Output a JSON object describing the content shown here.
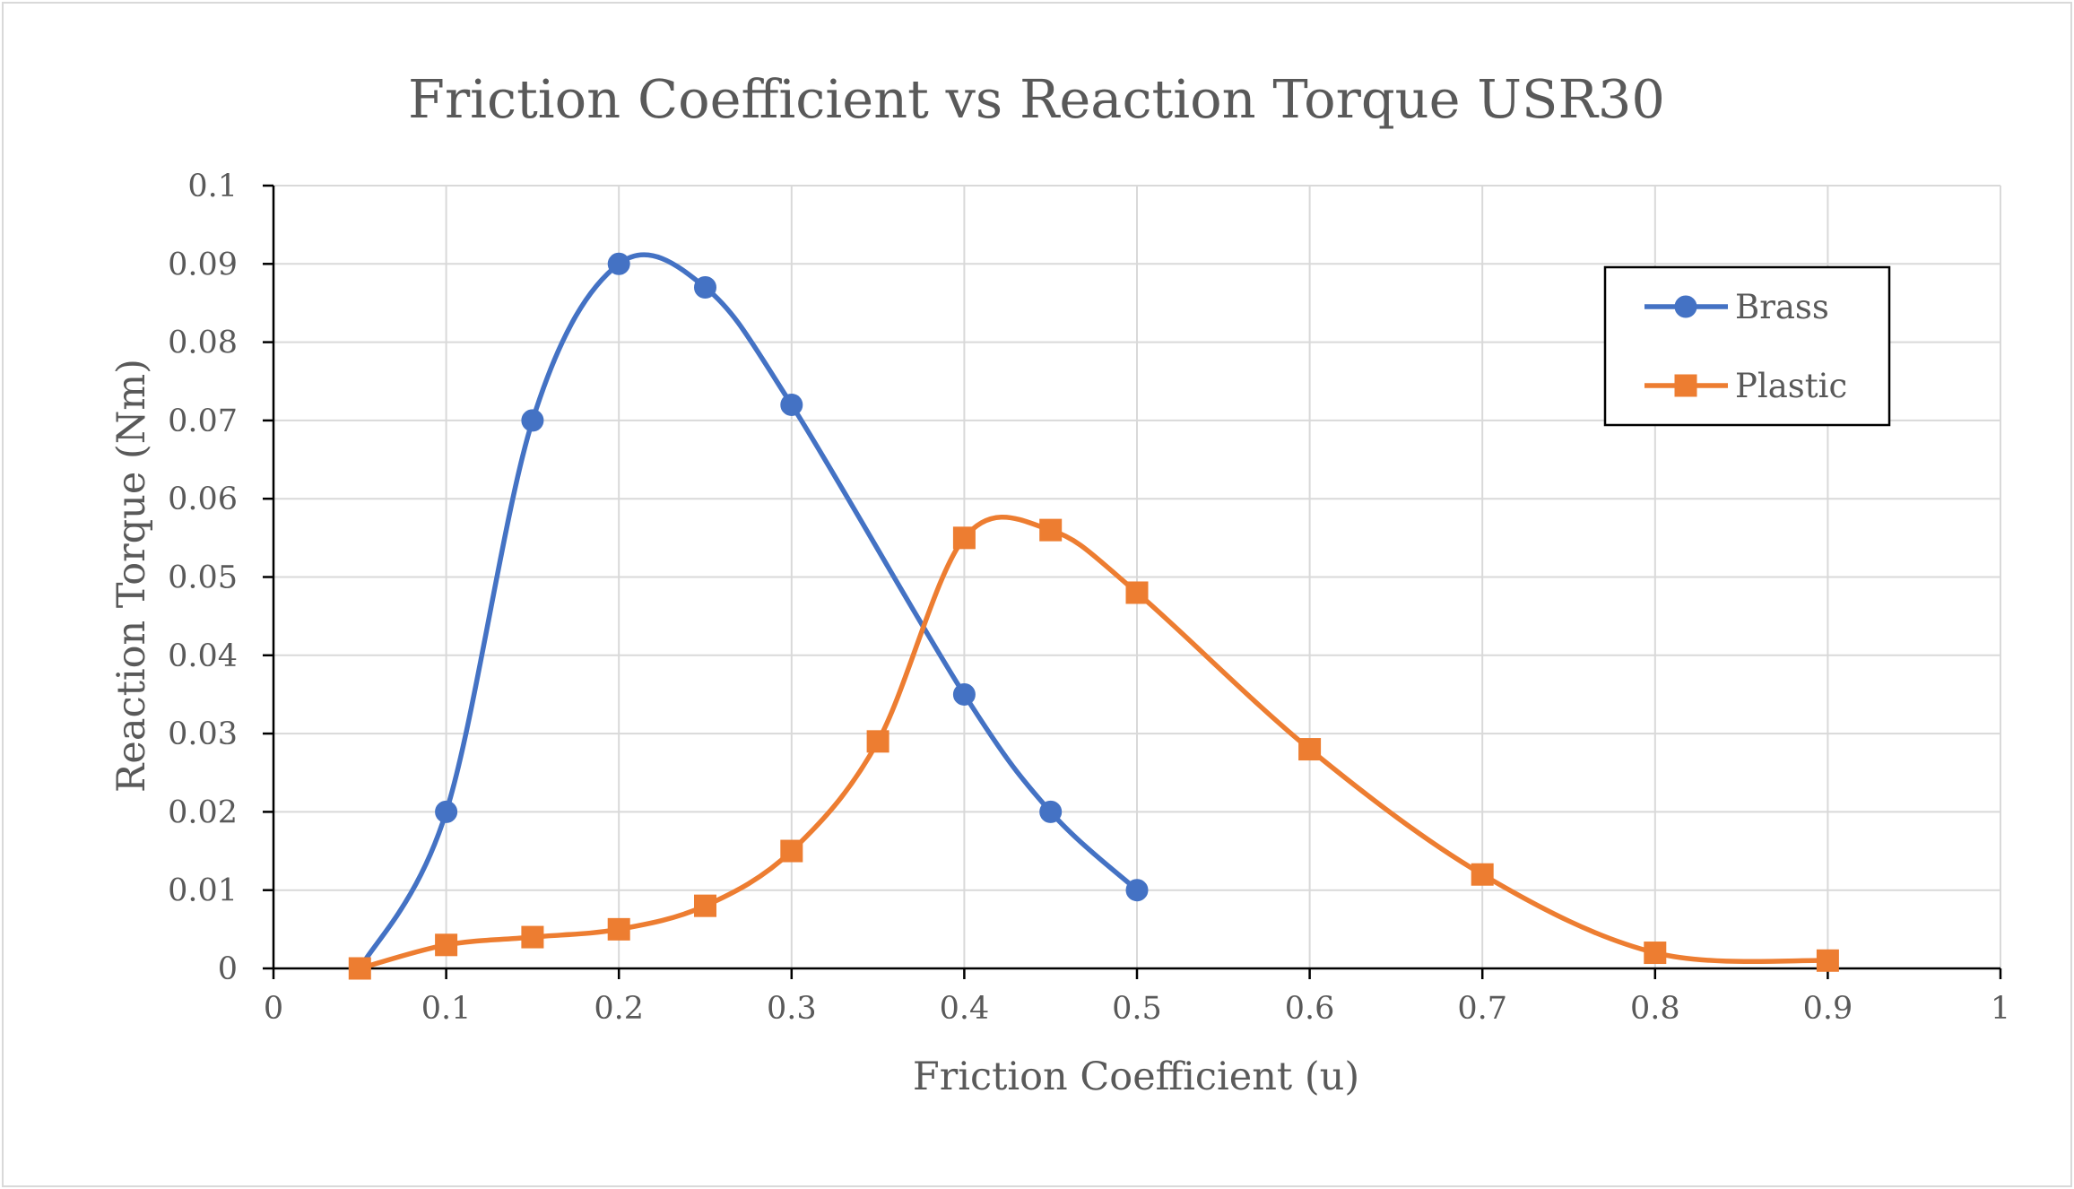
{
  "chart_data": {
    "type": "scatter",
    "subtype": "smooth-line-with-markers",
    "title": "Friction Coefficient vs Reaction Torque USR30",
    "xlabel": "Friction Coefficient (u)",
    "ylabel": "Reaction Torque (Nm)",
    "xlim": [
      0,
      1
    ],
    "ylim": [
      0,
      0.1
    ],
    "x_ticks": [
      "0",
      "0.1",
      "0.2",
      "0.3",
      "0.4",
      "0.5",
      "0.6",
      "0.7",
      "0.8",
      "0.9",
      "1"
    ],
    "y_ticks": [
      "0",
      "0.01",
      "0.02",
      "0.03",
      "0.04",
      "0.05",
      "0.06",
      "0.07",
      "0.08",
      "0.09",
      "0.1"
    ],
    "grid": true,
    "legend_position": "top-right",
    "series": [
      {
        "name": "Brass",
        "color": "#4472c4",
        "marker": "circle",
        "x": [
          0.05,
          0.1,
          0.15,
          0.2,
          0.25,
          0.3,
          0.4,
          0.45,
          0.5
        ],
        "y": [
          0,
          0.02,
          0.07,
          0.09,
          0.087,
          0.072,
          0.035,
          0.02,
          0.01
        ]
      },
      {
        "name": "Plastic",
        "color": "#ed7d31",
        "marker": "square",
        "x": [
          0.05,
          0.1,
          0.15,
          0.2,
          0.25,
          0.3,
          0.35,
          0.4,
          0.45,
          0.5,
          0.6,
          0.7,
          0.8,
          0.9
        ],
        "y": [
          0,
          0.003,
          0.004,
          0.005,
          0.008,
          0.015,
          0.029,
          0.055,
          0.056,
          0.048,
          0.028,
          0.012,
          0.002,
          0.001
        ]
      }
    ]
  }
}
